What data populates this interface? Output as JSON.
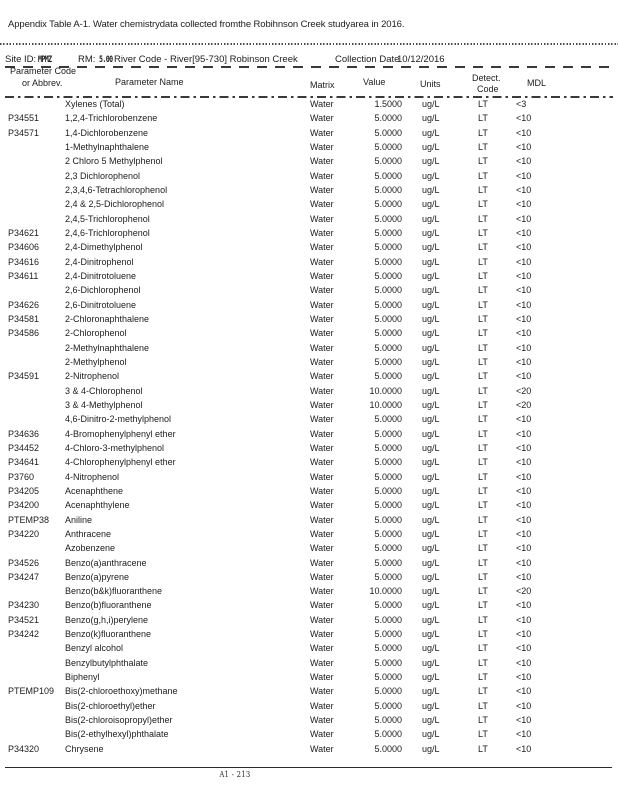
{
  "title": "Appendix Table A-1. Water chemistrydata collected fromthe Robihnson Creek studyarea in 2016.",
  "header": {
    "site_id_label": "Site ID:",
    "site_id_value": "MPMZ",
    "rm_label": "RM:",
    "rm_value": "5.00",
    "river_code": "River Code - River[95-730] Robinson Creek",
    "collection_date_label": "Collection Date",
    "collection_date_value": "10/12/2016"
  },
  "columns": {
    "code_line1": "Parameter Code",
    "code_line2": "or Abbrev.",
    "name": "Parameter Name",
    "matrix": "Matrix",
    "value": "Value",
    "units": "Units",
    "detect_line1": "Detect.",
    "detect_line2": "Code",
    "mdl": "MDL"
  },
  "rows": [
    {
      "code": "",
      "name": "Xylenes (Total)",
      "matrix": "Water",
      "value": "1.5000",
      "units": "ug/L",
      "detect": "LT",
      "mdl": "<3"
    },
    {
      "code": "P34551",
      "name": "1,2,4-Trichlorobenzene",
      "matrix": "Water",
      "value": "5.0000",
      "units": "ug/L",
      "detect": "LT",
      "mdl": "<10"
    },
    {
      "code": "P34571",
      "name": "1,4-Dichlorobenzene",
      "matrix": "Water",
      "value": "5.0000",
      "units": "ug/L",
      "detect": "LT",
      "mdl": "<10"
    },
    {
      "code": "",
      "name": "1-Methylnaphthalene",
      "matrix": "Water",
      "value": "5.0000",
      "units": "ug/L",
      "detect": "LT",
      "mdl": "<10"
    },
    {
      "code": "",
      "name": "2 Chloro 5 Methylphenol",
      "matrix": "Water",
      "value": "5.0000",
      "units": "ug/L",
      "detect": "LT",
      "mdl": "<10"
    },
    {
      "code": "",
      "name": "2,3 Dichlorophenol",
      "matrix": "Water",
      "value": "5.0000",
      "units": "ug/L",
      "detect": "LT",
      "mdl": "<10"
    },
    {
      "code": "",
      "name": "2,3,4,6-Tetrachlorophenol",
      "matrix": "Water",
      "value": "5.0000",
      "units": "ug/L",
      "detect": "LT",
      "mdl": "<10"
    },
    {
      "code": "",
      "name": "2,4 & 2,5-Dichlorophenol",
      "matrix": "Water",
      "value": "5.0000",
      "units": "ug/L",
      "detect": "LT",
      "mdl": "<10"
    },
    {
      "code": "",
      "name": "2,4,5-Trichlorophenol",
      "matrix": "Water",
      "value": "5.0000",
      "units": "ug/L",
      "detect": "LT",
      "mdl": "<10"
    },
    {
      "code": "P34621",
      "name": "2,4,6-Trichlorophenol",
      "matrix": "Water",
      "value": "5.0000",
      "units": "ug/L",
      "detect": "LT",
      "mdl": "<10"
    },
    {
      "code": "P34606",
      "name": "2,4-Dimethylphenol",
      "matrix": "Water",
      "value": "5.0000",
      "units": "ug/L",
      "detect": "LT",
      "mdl": "<10"
    },
    {
      "code": "P34616",
      "name": "2,4-Dinitrophenol",
      "matrix": "Water",
      "value": "5.0000",
      "units": "ug/L",
      "detect": "LT",
      "mdl": "<10"
    },
    {
      "code": "P34611",
      "name": "2,4-Dinitrotoluene",
      "matrix": "Water",
      "value": "5.0000",
      "units": "ug/L",
      "detect": "LT",
      "mdl": "<10"
    },
    {
      "code": "",
      "name": "2,6-Dichlorophenol",
      "matrix": "Water",
      "value": "5.0000",
      "units": "ug/L",
      "detect": "LT",
      "mdl": "<10"
    },
    {
      "code": "P34626",
      "name": "2,6-Dinitrotoluene",
      "matrix": "Water",
      "value": "5.0000",
      "units": "ug/L",
      "detect": "LT",
      "mdl": "<10"
    },
    {
      "code": "P34581",
      "name": "2-Chloronaphthalene",
      "matrix": "Water",
      "value": "5.0000",
      "units": "ug/L",
      "detect": "LT",
      "mdl": "<10"
    },
    {
      "code": "P34586",
      "name": "2-Chlorophenol",
      "matrix": "Water",
      "value": "5.0000",
      "units": "ug/L",
      "detect": "LT",
      "mdl": "<10"
    },
    {
      "code": "",
      "name": "2-Methylnaphthalene",
      "matrix": "Water",
      "value": "5.0000",
      "units": "ug/L",
      "detect": "LT",
      "mdl": "<10"
    },
    {
      "code": "",
      "name": "2-Methylphenol",
      "matrix": "Water",
      "value": "5.0000",
      "units": "ug/L",
      "detect": "LT",
      "mdl": "<10"
    },
    {
      "code": "P34591",
      "name": "2-Nitrophenol",
      "matrix": "Water",
      "value": "5.0000",
      "units": "ug/L",
      "detect": "LT",
      "mdl": "<10"
    },
    {
      "code": "",
      "name": "3 & 4-Chlorophenol",
      "matrix": "Water",
      "value": "10.0000",
      "units": "ug/L",
      "detect": "LT",
      "mdl": "<20"
    },
    {
      "code": "",
      "name": "3 & 4-Methylphenol",
      "matrix": "Water",
      "value": "10.0000",
      "units": "ug/L",
      "detect": "LT",
      "mdl": "<20"
    },
    {
      "code": "",
      "name": "4,6-Dinitro-2-methylphenol",
      "matrix": "Water",
      "value": "5.0000",
      "units": "ug/L",
      "detect": "LT",
      "mdl": "<10"
    },
    {
      "code": "P34636",
      "name": "4-Bromophenylphenyl ether",
      "matrix": "Water",
      "value": "5.0000",
      "units": "ug/L",
      "detect": "LT",
      "mdl": "<10"
    },
    {
      "code": "P34452",
      "name": "4-Chloro-3-methylphenol",
      "matrix": "Water",
      "value": "5.0000",
      "units": "ug/L",
      "detect": "LT",
      "mdl": "<10"
    },
    {
      "code": "P34641",
      "name": "4-Chlorophenylphenyl ether",
      "matrix": "Water",
      "value": "5.0000",
      "units": "ug/L",
      "detect": "LT",
      "mdl": "<10"
    },
    {
      "code": "P3760",
      "name": "4-Nitrophenol",
      "matrix": "Water",
      "value": "5.0000",
      "units": "ug/L",
      "detect": "LT",
      "mdl": "<10"
    },
    {
      "code": "P34205",
      "name": "Acenaphthene",
      "matrix": "Water",
      "value": "5.0000",
      "units": "ug/L",
      "detect": "LT",
      "mdl": "<10"
    },
    {
      "code": "P34200",
      "name": "Acenaphthylene",
      "matrix": "Water",
      "value": "5.0000",
      "units": "ug/L",
      "detect": "LT",
      "mdl": "<10"
    },
    {
      "code": "PTEMP38",
      "name": "Aniline",
      "matrix": "Water",
      "value": "5.0000",
      "units": "ug/L",
      "detect": "LT",
      "mdl": "<10"
    },
    {
      "code": "P34220",
      "name": "Anthracene",
      "matrix": "Water",
      "value": "5.0000",
      "units": "ug/L",
      "detect": "LT",
      "mdl": "<10"
    },
    {
      "code": "",
      "name": "Azobenzene",
      "matrix": "Water",
      "value": "5.0000",
      "units": "ug/L",
      "detect": "LT",
      "mdl": "<10"
    },
    {
      "code": "P34526",
      "name": "Benzo(a)anthracene",
      "matrix": "Water",
      "value": "5.0000",
      "units": "ug/L",
      "detect": "LT",
      "mdl": "<10"
    },
    {
      "code": "P34247",
      "name": "Benzo(a)pyrene",
      "matrix": "Water",
      "value": "5.0000",
      "units": "ug/L",
      "detect": "LT",
      "mdl": "<10"
    },
    {
      "code": "",
      "name": "Benzo(b&k)fluoranthene",
      "matrix": "Water",
      "value": "10.0000",
      "units": "ug/L",
      "detect": "LT",
      "mdl": "<20"
    },
    {
      "code": "P34230",
      "name": "Benzo(b)fluoranthene",
      "matrix": "Water",
      "value": "5.0000",
      "units": "ug/L",
      "detect": "LT",
      "mdl": "<10"
    },
    {
      "code": "P34521",
      "name": "Benzo(g,h,i)perylene",
      "matrix": "Water",
      "value": "5.0000",
      "units": "ug/L",
      "detect": "LT",
      "mdl": "<10"
    },
    {
      "code": "P34242",
      "name": "Benzo(k)fluoranthene",
      "matrix": "Water",
      "value": "5.0000",
      "units": "ug/L",
      "detect": "LT",
      "mdl": "<10"
    },
    {
      "code": "",
      "name": "Benzyl alcohol",
      "matrix": "Water",
      "value": "5.0000",
      "units": "ug/L",
      "detect": "LT",
      "mdl": "<10"
    },
    {
      "code": "",
      "name": "Benzylbutylphthalate",
      "matrix": "Water",
      "value": "5.0000",
      "units": "ug/L",
      "detect": "LT",
      "mdl": "<10"
    },
    {
      "code": "",
      "name": "Biphenyl",
      "matrix": "Water",
      "value": "5.0000",
      "units": "ug/L",
      "detect": "LT",
      "mdl": "<10"
    },
    {
      "code": "PTEMP109",
      "name": "Bis(2-chloroethoxy)methane",
      "matrix": "Water",
      "value": "5.0000",
      "units": "ug/L",
      "detect": "LT",
      "mdl": "<10"
    },
    {
      "code": "",
      "name": "Bis(2-chloroethyl)ether",
      "matrix": "Water",
      "value": "5.0000",
      "units": "ug/L",
      "detect": "LT",
      "mdl": "<10"
    },
    {
      "code": "",
      "name": "Bis(2-chloroisopropyl)ether",
      "matrix": "Water",
      "value": "5.0000",
      "units": "ug/L",
      "detect": "LT",
      "mdl": "<10"
    },
    {
      "code": "",
      "name": "Bis(2-ethylhexyl)phthalate",
      "matrix": "Water",
      "value": "5.0000",
      "units": "ug/L",
      "detect": "LT",
      "mdl": "<10"
    },
    {
      "code": "P34320",
      "name": "Chrysene",
      "matrix": "Water",
      "value": "5.0000",
      "units": "ug/L",
      "detect": "LT",
      "mdl": "<10"
    }
  ],
  "footer": {
    "page_label": "A1 - 213"
  }
}
